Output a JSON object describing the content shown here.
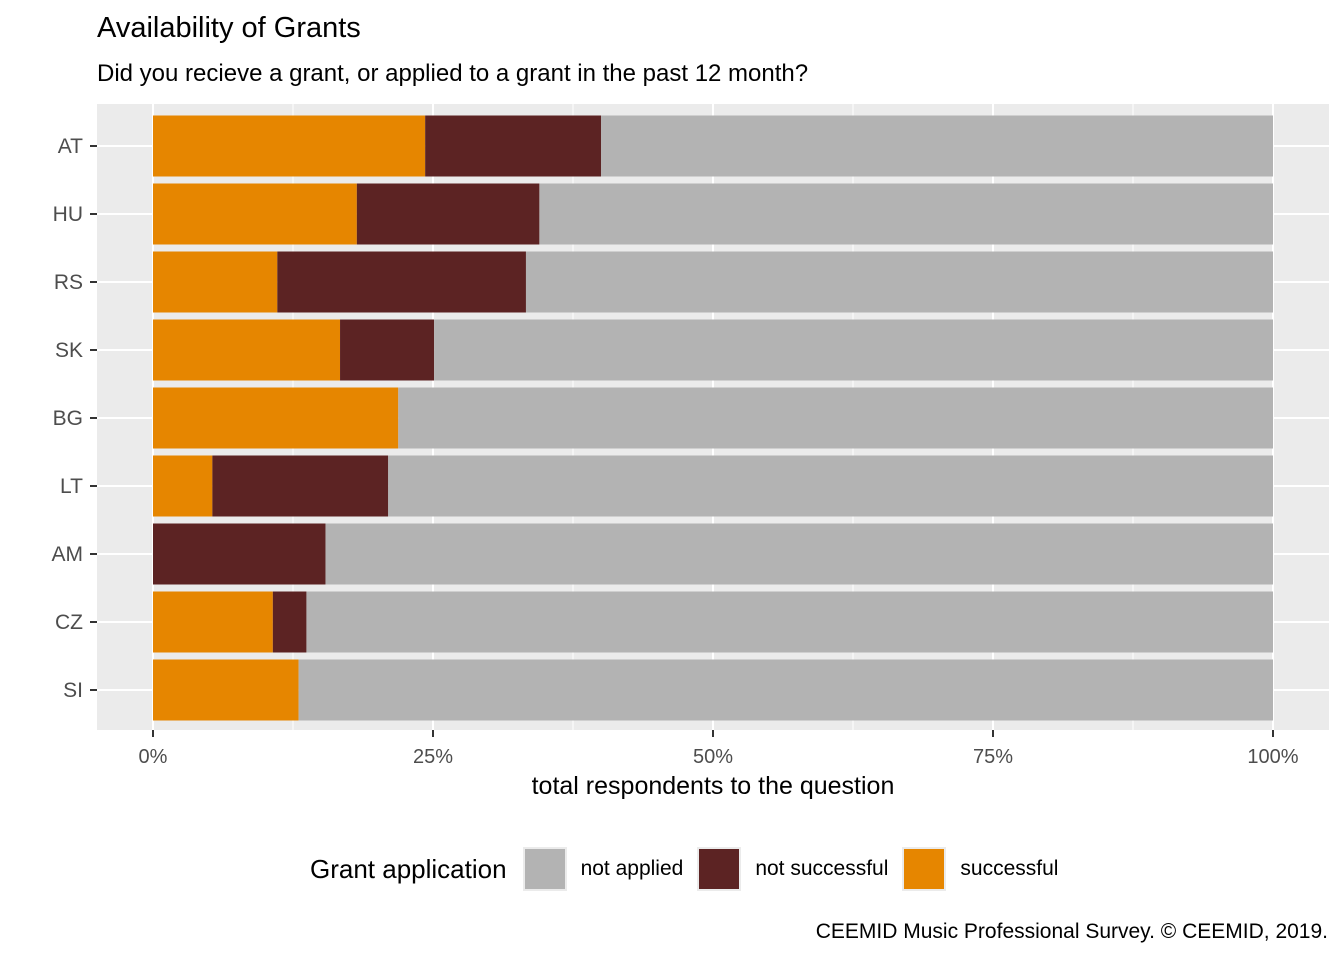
{
  "chart_data": {
    "type": "bar",
    "orientation": "horizontal",
    "stacked": true,
    "title": "Availability of Grants",
    "subtitle": "Did you recieve a grant, or applied to a grant in the past 12 month?",
    "xlabel": "total respondents to the question",
    "ylabel": "",
    "caption": "CEEMID Music Professional Survey. © CEEMID, 2019.",
    "xlim": [
      0,
      100
    ],
    "x_ticks": [
      0,
      25,
      50,
      75,
      100
    ],
    "x_tick_labels": [
      "0%",
      "25%",
      "50%",
      "75%",
      "100%"
    ],
    "grid": true,
    "categories": [
      "AT",
      "HU",
      "RS",
      "SK",
      "BG",
      "LT",
      "AM",
      "CZ",
      "SI"
    ],
    "series": [
      {
        "name": "successful",
        "color": "#E68600",
        "values": [
          24.3,
          18.2,
          11.1,
          16.7,
          21.9,
          5.3,
          0.0,
          10.7,
          13.0
        ]
      },
      {
        "name": "not successful",
        "color": "#5C2323",
        "values": [
          15.7,
          16.3,
          22.2,
          8.4,
          0.0,
          15.7,
          15.4,
          3.0,
          0.0
        ]
      },
      {
        "name": "not applied",
        "color": "#B3B3B3",
        "values": [
          60.0,
          65.5,
          66.7,
          74.9,
          78.1,
          79.0,
          84.6,
          86.3,
          87.0
        ]
      }
    ],
    "legend": {
      "title": "Grant application",
      "position": "bottom",
      "entries": [
        {
          "label": "not applied",
          "color": "#B3B3B3"
        },
        {
          "label": "not successful",
          "color": "#5C2323"
        },
        {
          "label": "successful",
          "color": "#E68600"
        }
      ]
    }
  }
}
